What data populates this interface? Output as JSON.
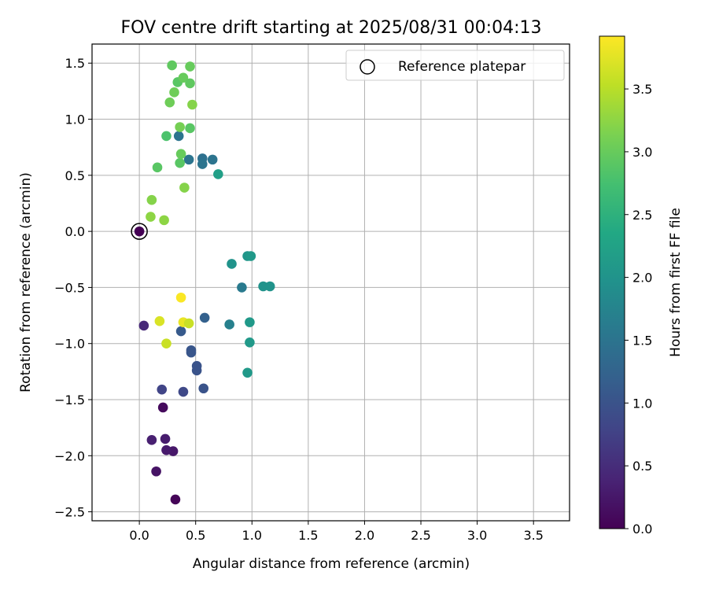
{
  "chart_data": {
    "type": "scatter",
    "title": "FOV centre drift starting at 2025/08/31 00:04:13",
    "xlabel": "Angular distance from reference (arcmin)",
    "ylabel": "Rotation from reference (arcmin)",
    "xlim": [
      -0.42,
      3.82
    ],
    "ylim": [
      -2.58,
      1.67
    ],
    "x_ticks": [
      0.0,
      0.5,
      1.0,
      1.5,
      2.0,
      2.5,
      3.0,
      3.5
    ],
    "x_tick_labels": [
      "0.0",
      "0.5",
      "1.0",
      "1.5",
      "2.0",
      "2.5",
      "3.0",
      "3.5"
    ],
    "y_ticks": [
      -2.5,
      -2.0,
      -1.5,
      -1.0,
      -0.5,
      0.0,
      0.5,
      1.0,
      1.5
    ],
    "y_tick_labels": [
      "−2.5",
      "−2.0",
      "−1.5",
      "−1.0",
      "−0.5",
      "0.0",
      "0.5",
      "1.0",
      "1.5"
    ],
    "grid": true,
    "legend": {
      "entries": [
        "Reference platepar"
      ],
      "placement": "top-right"
    },
    "reference_point": {
      "x": 0.0,
      "y": 0.0,
      "label": "Reference platepar"
    },
    "colorbar": {
      "label": "Hours from first FF file",
      "colormap": "viridis",
      "range": [
        0.0,
        3.92
      ],
      "ticks": [
        0.0,
        0.5,
        1.0,
        1.5,
        2.0,
        2.5,
        3.0,
        3.5
      ],
      "tick_labels": [
        "0.0",
        "0.5",
        "1.0",
        "1.5",
        "2.0",
        "2.5",
        "3.0",
        "3.5"
      ]
    },
    "points": [
      {
        "x": 0.0,
        "y": 0.0,
        "c": 0.0
      },
      {
        "x": 0.32,
        "y": -2.39,
        "c": 0.05
      },
      {
        "x": 0.21,
        "y": -1.57,
        "c": 0.1
      },
      {
        "x": 0.15,
        "y": -2.14,
        "c": 0.2
      },
      {
        "x": 0.3,
        "y": -1.96,
        "c": 0.25
      },
      {
        "x": 0.24,
        "y": -1.95,
        "c": 0.28
      },
      {
        "x": 0.23,
        "y": -1.85,
        "c": 0.3
      },
      {
        "x": 0.11,
        "y": -1.86,
        "c": 0.35
      },
      {
        "x": 0.04,
        "y": -0.84,
        "c": 0.45
      },
      {
        "x": 0.2,
        "y": -1.41,
        "c": 0.8
      },
      {
        "x": 0.39,
        "y": -1.43,
        "c": 0.85
      },
      {
        "x": 0.57,
        "y": -1.4,
        "c": 1.0
      },
      {
        "x": 0.51,
        "y": -1.24,
        "c": 1.0
      },
      {
        "x": 0.51,
        "y": -1.2,
        "c": 1.0
      },
      {
        "x": 0.46,
        "y": -1.08,
        "c": 1.05
      },
      {
        "x": 0.46,
        "y": -1.06,
        "c": 1.05
      },
      {
        "x": 0.37,
        "y": -0.89,
        "c": 1.1
      },
      {
        "x": 0.58,
        "y": -0.77,
        "c": 1.2
      },
      {
        "x": 0.8,
        "y": -0.83,
        "c": 1.7
      },
      {
        "x": 0.91,
        "y": -0.5,
        "c": 1.6
      },
      {
        "x": 0.82,
        "y": -0.29,
        "c": 2.0
      },
      {
        "x": 0.96,
        "y": -0.22,
        "c": 2.05
      },
      {
        "x": 0.99,
        "y": -0.22,
        "c": 2.1
      },
      {
        "x": 1.1,
        "y": -0.49,
        "c": 2.0
      },
      {
        "x": 1.16,
        "y": -0.49,
        "c": 2.0
      },
      {
        "x": 0.98,
        "y": -0.81,
        "c": 2.1
      },
      {
        "x": 0.98,
        "y": -0.99,
        "c": 2.1
      },
      {
        "x": 0.96,
        "y": -1.26,
        "c": 2.1
      },
      {
        "x": 0.35,
        "y": 0.85,
        "c": 1.5
      },
      {
        "x": 0.44,
        "y": 0.64,
        "c": 1.5
      },
      {
        "x": 0.56,
        "y": 0.65,
        "c": 1.45
      },
      {
        "x": 0.56,
        "y": 0.6,
        "c": 1.5
      },
      {
        "x": 0.65,
        "y": 0.64,
        "c": 1.5
      },
      {
        "x": 0.7,
        "y": 0.51,
        "c": 2.2
      },
      {
        "x": 0.24,
        "y": 0.85,
        "c": 2.8
      },
      {
        "x": 0.16,
        "y": 0.57,
        "c": 2.9
      },
      {
        "x": 0.36,
        "y": 0.61,
        "c": 2.9
      },
      {
        "x": 0.37,
        "y": 0.69,
        "c": 3.0
      },
      {
        "x": 0.36,
        "y": 0.93,
        "c": 3.1
      },
      {
        "x": 0.45,
        "y": 0.92,
        "c": 2.9
      },
      {
        "x": 0.29,
        "y": 1.48,
        "c": 2.95
      },
      {
        "x": 0.45,
        "y": 1.47,
        "c": 3.0
      },
      {
        "x": 0.34,
        "y": 1.33,
        "c": 2.9
      },
      {
        "x": 0.39,
        "y": 1.37,
        "c": 3.0
      },
      {
        "x": 0.45,
        "y": 1.32,
        "c": 2.95
      },
      {
        "x": 0.31,
        "y": 1.24,
        "c": 3.05
      },
      {
        "x": 0.27,
        "y": 1.15,
        "c": 3.05
      },
      {
        "x": 0.47,
        "y": 1.13,
        "c": 3.2
      },
      {
        "x": 0.4,
        "y": 0.39,
        "c": 3.2
      },
      {
        "x": 0.11,
        "y": 0.28,
        "c": 3.2
      },
      {
        "x": 0.1,
        "y": 0.13,
        "c": 3.25
      },
      {
        "x": 0.22,
        "y": 0.1,
        "c": 3.25
      },
      {
        "x": 0.37,
        "y": -0.59,
        "c": 3.9
      },
      {
        "x": 0.18,
        "y": -0.8,
        "c": 3.7
      },
      {
        "x": 0.39,
        "y": -0.81,
        "c": 3.8
      },
      {
        "x": 0.44,
        "y": -0.82,
        "c": 3.6
      },
      {
        "x": 0.24,
        "y": -1.0,
        "c": 3.6
      }
    ]
  }
}
